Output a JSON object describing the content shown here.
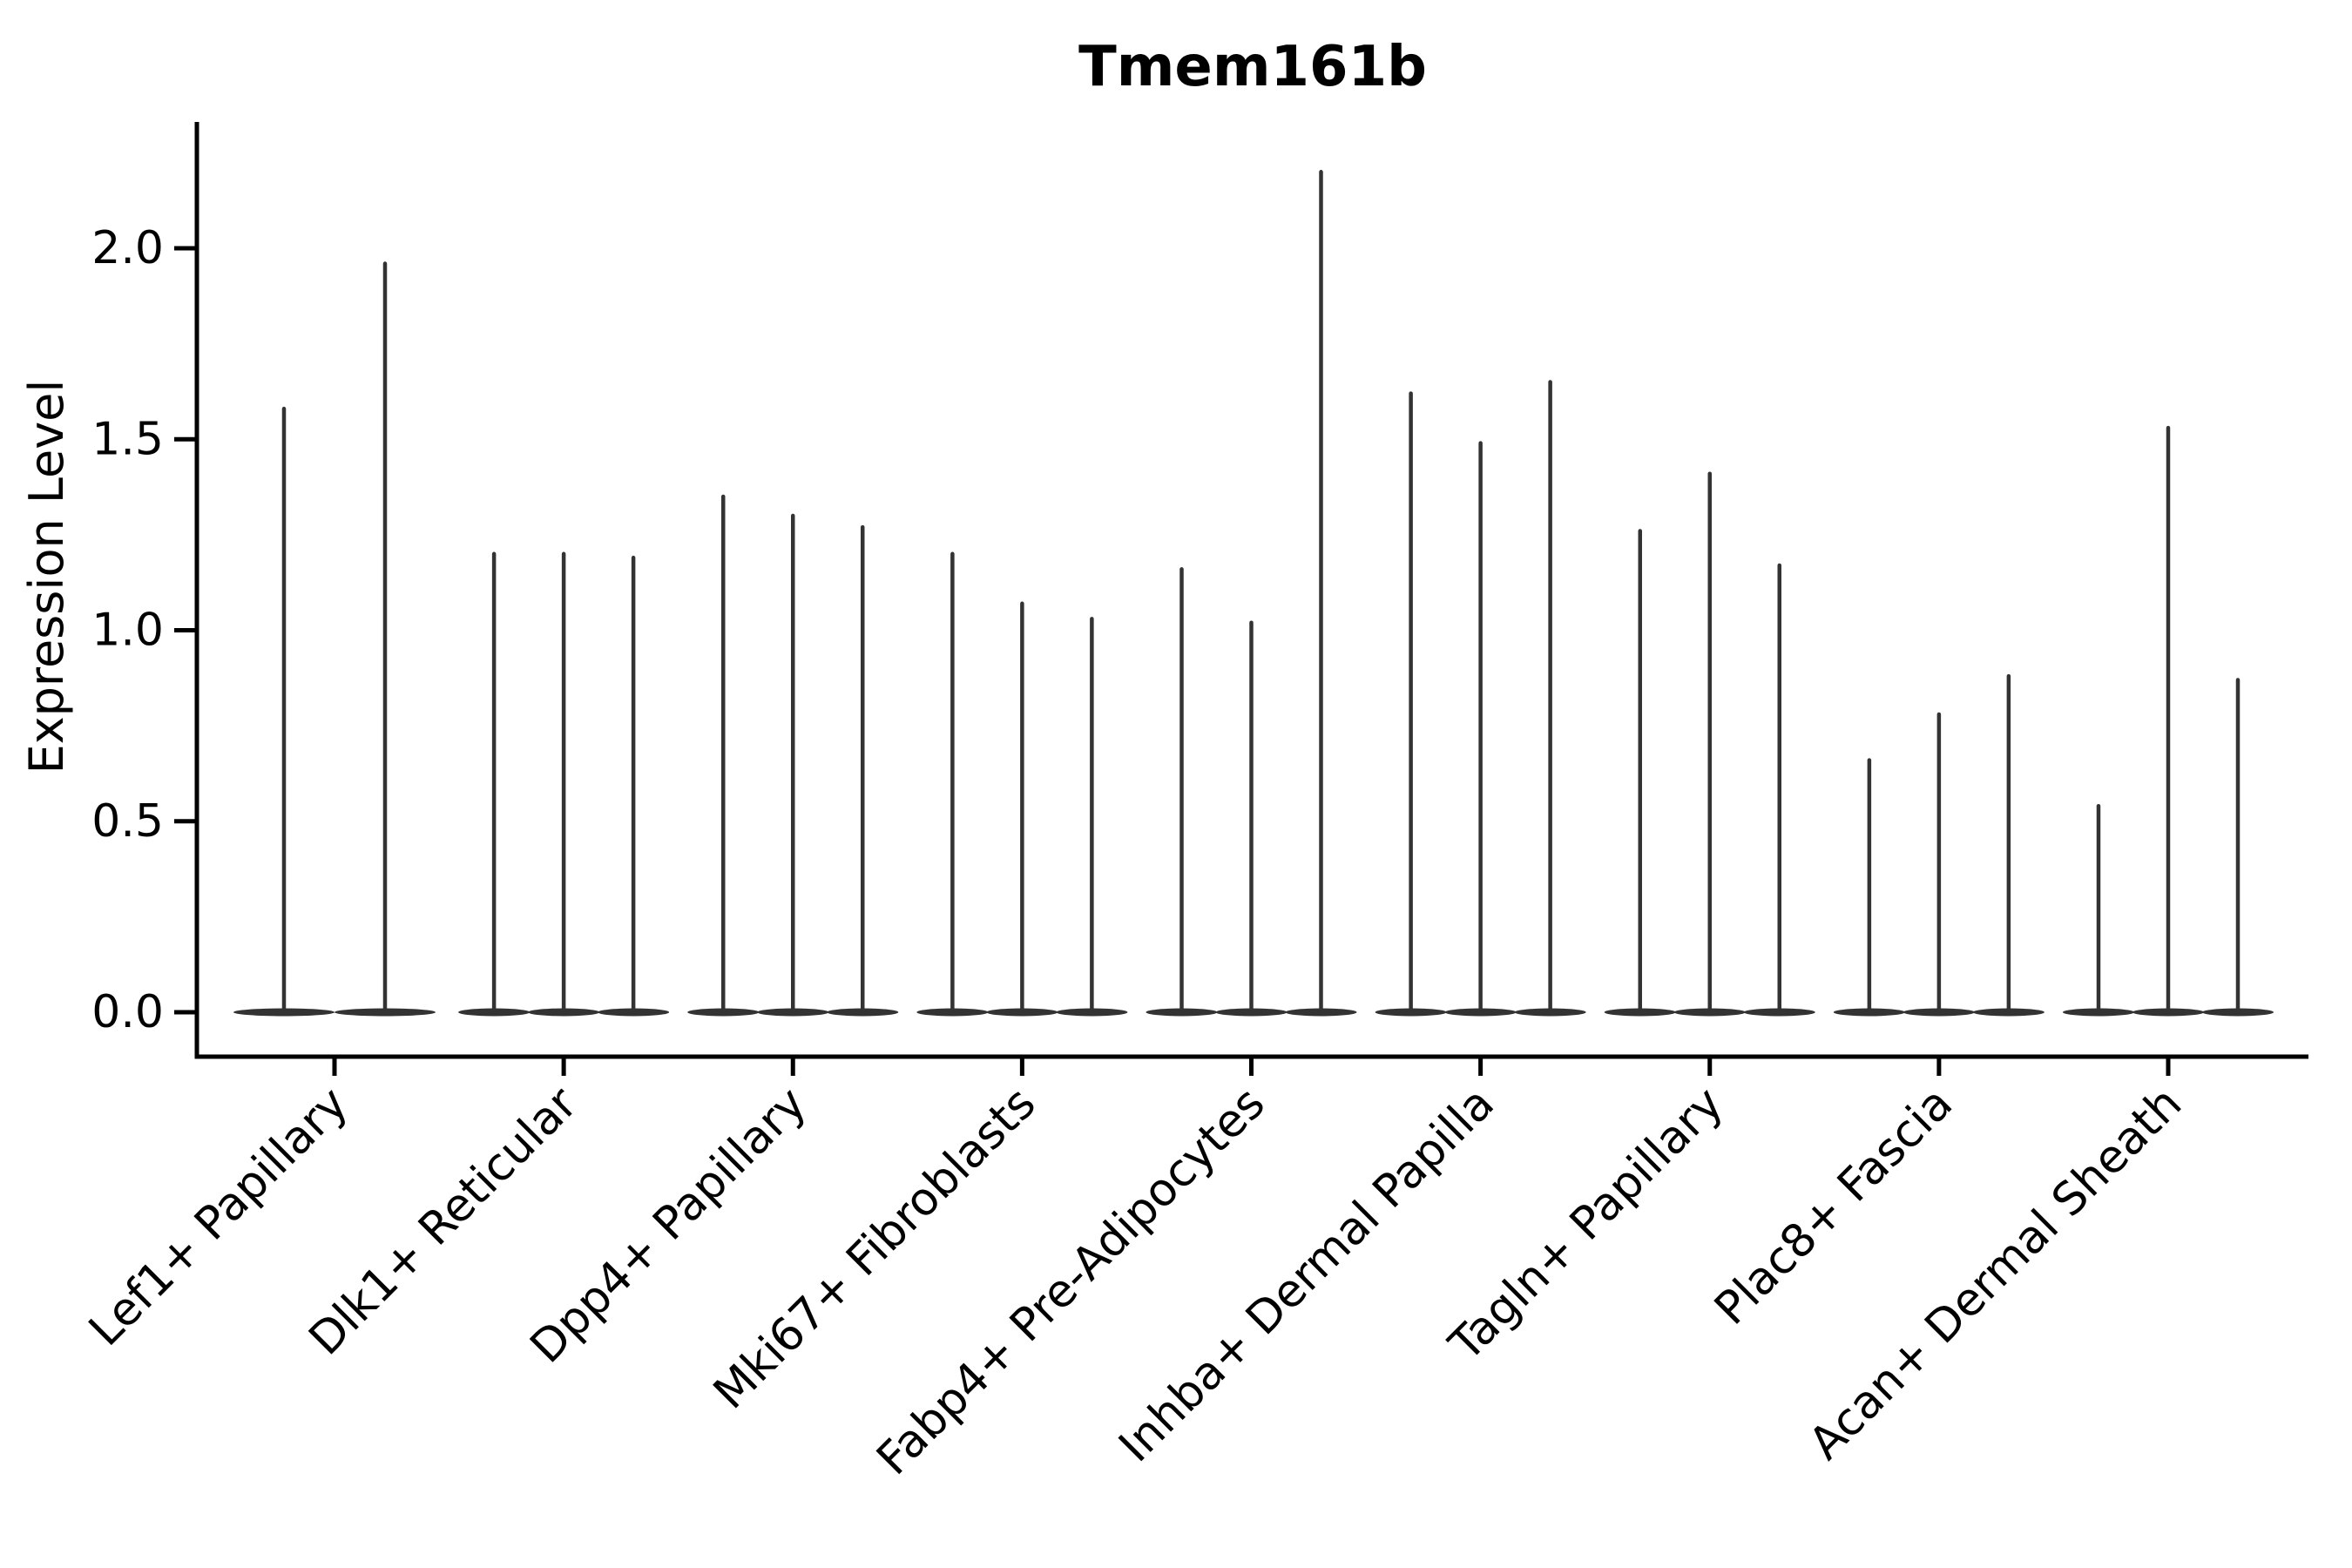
{
  "title": "Tmem161b",
  "chart_data": {
    "type": "violin",
    "title": "Tmem161b",
    "xlabel": "",
    "ylabel": "Expression Level",
    "ylim": [
      -0.12,
      2.33
    ],
    "ytick_values": [
      0.0,
      0.5,
      1.0,
      1.5,
      2.0
    ],
    "ytick_labels": [
      "0.0",
      "0.5",
      "1.0",
      "1.5",
      "2.0"
    ],
    "grid": false,
    "legend": "none",
    "shape_note": "Each violin is a flat zero-expression mass at y=0 with a thin vertical spike reaching its maximum expression value",
    "categories": [
      "Lef1+ Papillary",
      "Dlk1+ Reticular",
      "Dpp4+ Papillary",
      "Mki67+ Fibroblasts",
      "Fabp4+ Pre-Adipocytes",
      "Inhba+ Dermal Papilla",
      "Tagln+ Papillary",
      "Plac8+ Fascia",
      "Acan+ Dermal Sheath"
    ],
    "groups": [
      {
        "label": "Lef1+ Papillary",
        "violin_maxima": [
          1.58,
          1.96
        ]
      },
      {
        "label": "Dlk1+ Reticular",
        "violin_maxima": [
          1.2,
          1.2,
          1.19
        ]
      },
      {
        "label": "Dpp4+ Papillary",
        "violin_maxima": [
          1.35,
          1.3,
          1.27
        ]
      },
      {
        "label": "Mki67+ Fibroblasts",
        "violin_maxima": [
          1.2,
          1.07,
          1.03
        ]
      },
      {
        "label": "Fabp4+ Pre-Adipocytes",
        "violin_maxima": [
          1.16,
          1.02,
          2.2
        ]
      },
      {
        "label": "Inhba+ Dermal Papilla",
        "violin_maxima": [
          1.62,
          1.49,
          1.65
        ]
      },
      {
        "label": "Tagln+ Papillary",
        "violin_maxima": [
          1.26,
          1.41,
          1.17
        ]
      },
      {
        "label": "Plac8+ Fascia",
        "violin_maxima": [
          0.66,
          0.78,
          0.88
        ]
      },
      {
        "label": "Acan+ Dermal Sheath",
        "violin_maxima": [
          0.54,
          1.53,
          0.87
        ]
      }
    ],
    "colors": {
      "violin": "#333333",
      "axis": "#000000",
      "text": "#000000",
      "background": "#ffffff"
    }
  }
}
